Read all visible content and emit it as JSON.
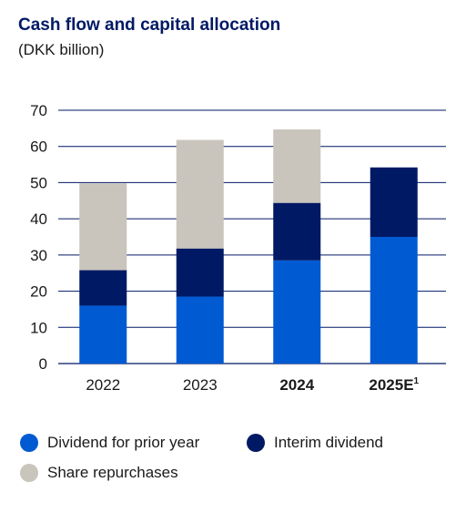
{
  "chart_data": {
    "type": "bar",
    "stacked": true,
    "title": "Cash flow and capital allocation",
    "subtitle": "(DKK billion)",
    "categories": [
      "2022",
      "2023",
      "2024",
      "2025E"
    ],
    "category_bold": [
      false,
      false,
      true,
      true
    ],
    "footnote_mark": "1",
    "ylim": [
      0,
      70
    ],
    "yticks": [
      0,
      10,
      20,
      30,
      40,
      50,
      60,
      70
    ],
    "grid": true,
    "legend_position": "bottom",
    "series": [
      {
        "name": "Dividend for prior year",
        "color": "#005ad2",
        "values": [
          16,
          18.5,
          28.5,
          35
        ]
      },
      {
        "name": "Interim dividend",
        "color": "#001965",
        "values": [
          9.8,
          13.3,
          15.9,
          19.2
        ]
      },
      {
        "name": "Share repurchases",
        "color": "#c9c4bc",
        "values": [
          24,
          30,
          20.3,
          0
        ]
      }
    ]
  }
}
